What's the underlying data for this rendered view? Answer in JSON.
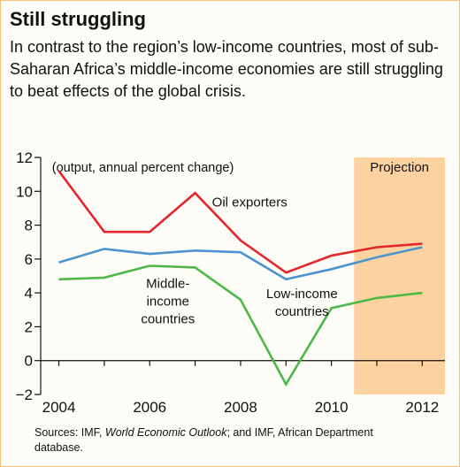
{
  "header": {
    "title": "Still struggling",
    "subtitle": "In contrast to the region’s low-income countries, most of sub-Saharan Africa’s middle-income economies are still struggling to beat effects of the global crisis."
  },
  "chart_data": {
    "type": "line",
    "annotation": "(output, annual percent change)",
    "projection_label": "Projection",
    "projection_range": [
      2010.5,
      2012.5
    ],
    "projection_color": "#fbd2a0",
    "x": [
      2004,
      2005,
      2006,
      2007,
      2008,
      2009,
      2010,
      2011,
      2012
    ],
    "xticks": [
      "2004",
      "2006",
      "2008",
      "2010",
      "2012"
    ],
    "xlim": [
      2003.6,
      2012.5
    ],
    "ylim": [
      -2,
      12
    ],
    "yticks": [
      "12",
      "10",
      "8",
      "6",
      "4",
      "2",
      "0",
      "-2"
    ],
    "series": [
      {
        "name": "Oil exporters",
        "color": "#e3262b",
        "values": [
          11.2,
          7.6,
          7.6,
          9.9,
          7.1,
          5.2,
          6.2,
          6.7,
          6.9
        ]
      },
      {
        "name": "Low-income countries",
        "color": "#4a95d0",
        "values": [
          5.8,
          6.6,
          6.3,
          6.5,
          6.4,
          4.8,
          5.4,
          6.1,
          6.7
        ]
      },
      {
        "name": "Middle-income countries",
        "color": "#4db848",
        "values": [
          4.8,
          4.9,
          5.6,
          5.5,
          3.6,
          -1.4,
          3.1,
          3.7,
          4.0
        ]
      }
    ],
    "series_labels": {
      "oil": "Oil exporters",
      "middle": [
        "Middle-",
        "income",
        "countries"
      ],
      "low": [
        "Low-income",
        "countries"
      ]
    }
  },
  "source": {
    "prefix": "Sources: IMF, ",
    "italic": "World Economic Outlook",
    "suffix": "; and IMF, African Department database."
  }
}
